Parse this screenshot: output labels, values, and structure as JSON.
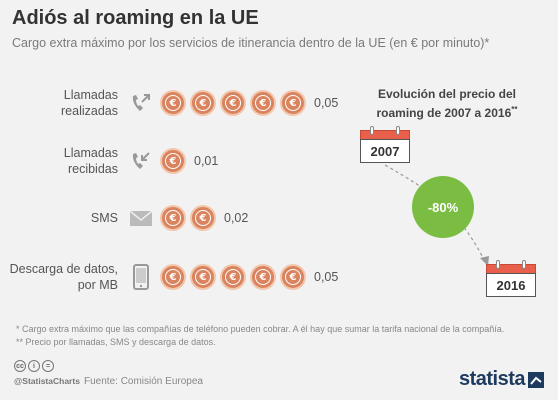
{
  "title": "Adiós al roaming en la UE",
  "subtitle": "Cargo extra máximo por los servicios de itinerancia dentro de la UE (en € por minuto)*",
  "chart_data": {
    "type": "bar",
    "unit": "€ por minuto",
    "categories": [
      "Llamadas realizadas",
      "Llamadas recibidas",
      "SMS",
      "Descarga de datos, por MB"
    ],
    "category_lines": [
      [
        "Llamadas",
        "realizadas"
      ],
      [
        "Llamadas",
        "recibidas"
      ],
      [
        "SMS"
      ],
      [
        "Descarga de datos,",
        "por MB"
      ]
    ],
    "values": [
      0.05,
      0.01,
      0.02,
      0.05
    ],
    "value_labels": [
      "0,05",
      "0,01",
      "0,02",
      "0,05"
    ],
    "coins_per_cent": 1,
    "icons": [
      "phone-outgoing-icon",
      "phone-incoming-icon",
      "envelope-icon",
      "smartphone-icon"
    ],
    "coin_color": "#d9845e"
  },
  "evolution": {
    "title_line1": "Evolución del precio del",
    "title_line2": "roaming de 2007 a 2016",
    "title_mark": "**",
    "year_start": "2007",
    "year_end": "2016",
    "change": "-80%",
    "badge_color": "#7bbd43",
    "calendar_color": "#e8604c"
  },
  "footnotes": [
    "* Cargo extra máximo que las compañías de teléfono pueden cobrar. A él hay que sumar la tarifa nacional de la compañía.",
    "** Precio por llamadas, SMS y descarga de datos."
  ],
  "license_handle": "@StatistaCharts",
  "source": "Fuente: Comisión Europea",
  "brand": "statista"
}
